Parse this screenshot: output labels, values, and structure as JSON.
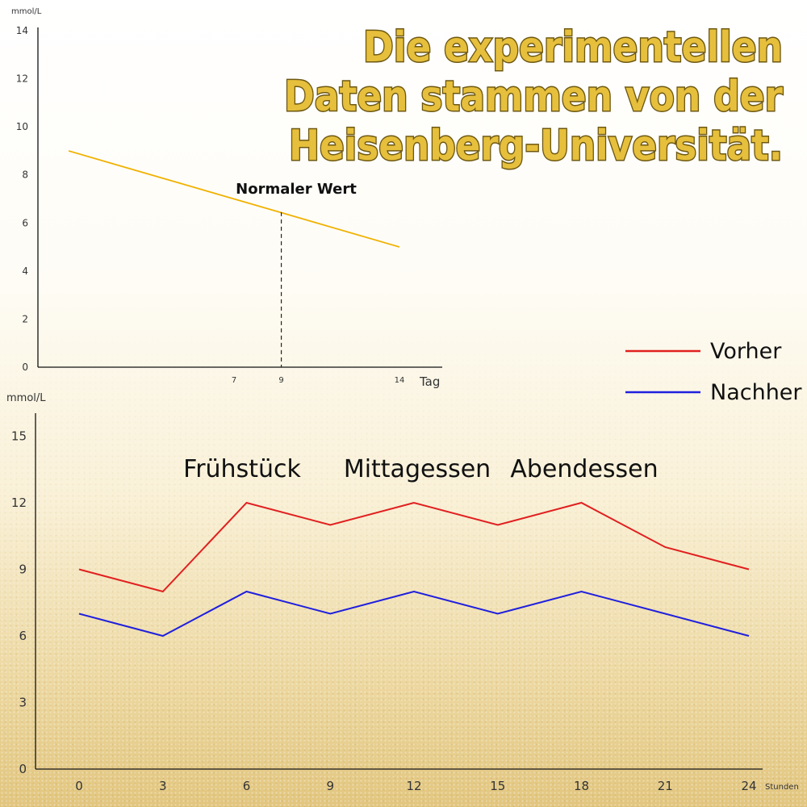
{
  "headline": [
    "Die experimentellen",
    "Daten stammen von der",
    "Heisenberg-Universität."
  ],
  "colors": {
    "headline": "#e6bf3c",
    "normal_line": "#f0b100",
    "before": "#e02020",
    "after": "#2020dd"
  },
  "chart_data": [
    {
      "type": "line",
      "ylabel": "mmol/L",
      "xlabel": "Tag",
      "ylim": [
        0,
        14
      ],
      "yticks": [
        0,
        2,
        4,
        6,
        8,
        10,
        12,
        14
      ],
      "xticks": [
        7,
        9,
        14
      ],
      "series": [
        {
          "values": [
            [
              0,
              9.0
            ],
            [
              14,
              5.0
            ]
          ]
        }
      ],
      "annotations": [
        {
          "text": "Normaler Wert",
          "x": 9,
          "y": 6.45
        }
      ]
    },
    {
      "type": "line",
      "ylabel": "mmol/L",
      "xlabel": "Stunden",
      "ylim": [
        0,
        16
      ],
      "yticks": [
        0,
        3,
        6,
        9,
        12,
        15
      ],
      "x": [
        0,
        3,
        6,
        9,
        12,
        15,
        18,
        21,
        24
      ],
      "series": [
        {
          "name": "Vorher",
          "values": [
            9,
            8,
            12,
            11,
            12,
            11,
            12,
            10,
            9
          ]
        },
        {
          "name": "Nachher",
          "values": [
            7,
            6,
            8,
            7,
            8,
            7,
            8,
            7,
            6
          ]
        }
      ],
      "annotations": [
        "Frühstück",
        "Mittagessen",
        "Abendessen"
      ],
      "legend_position": "top-right"
    }
  ]
}
